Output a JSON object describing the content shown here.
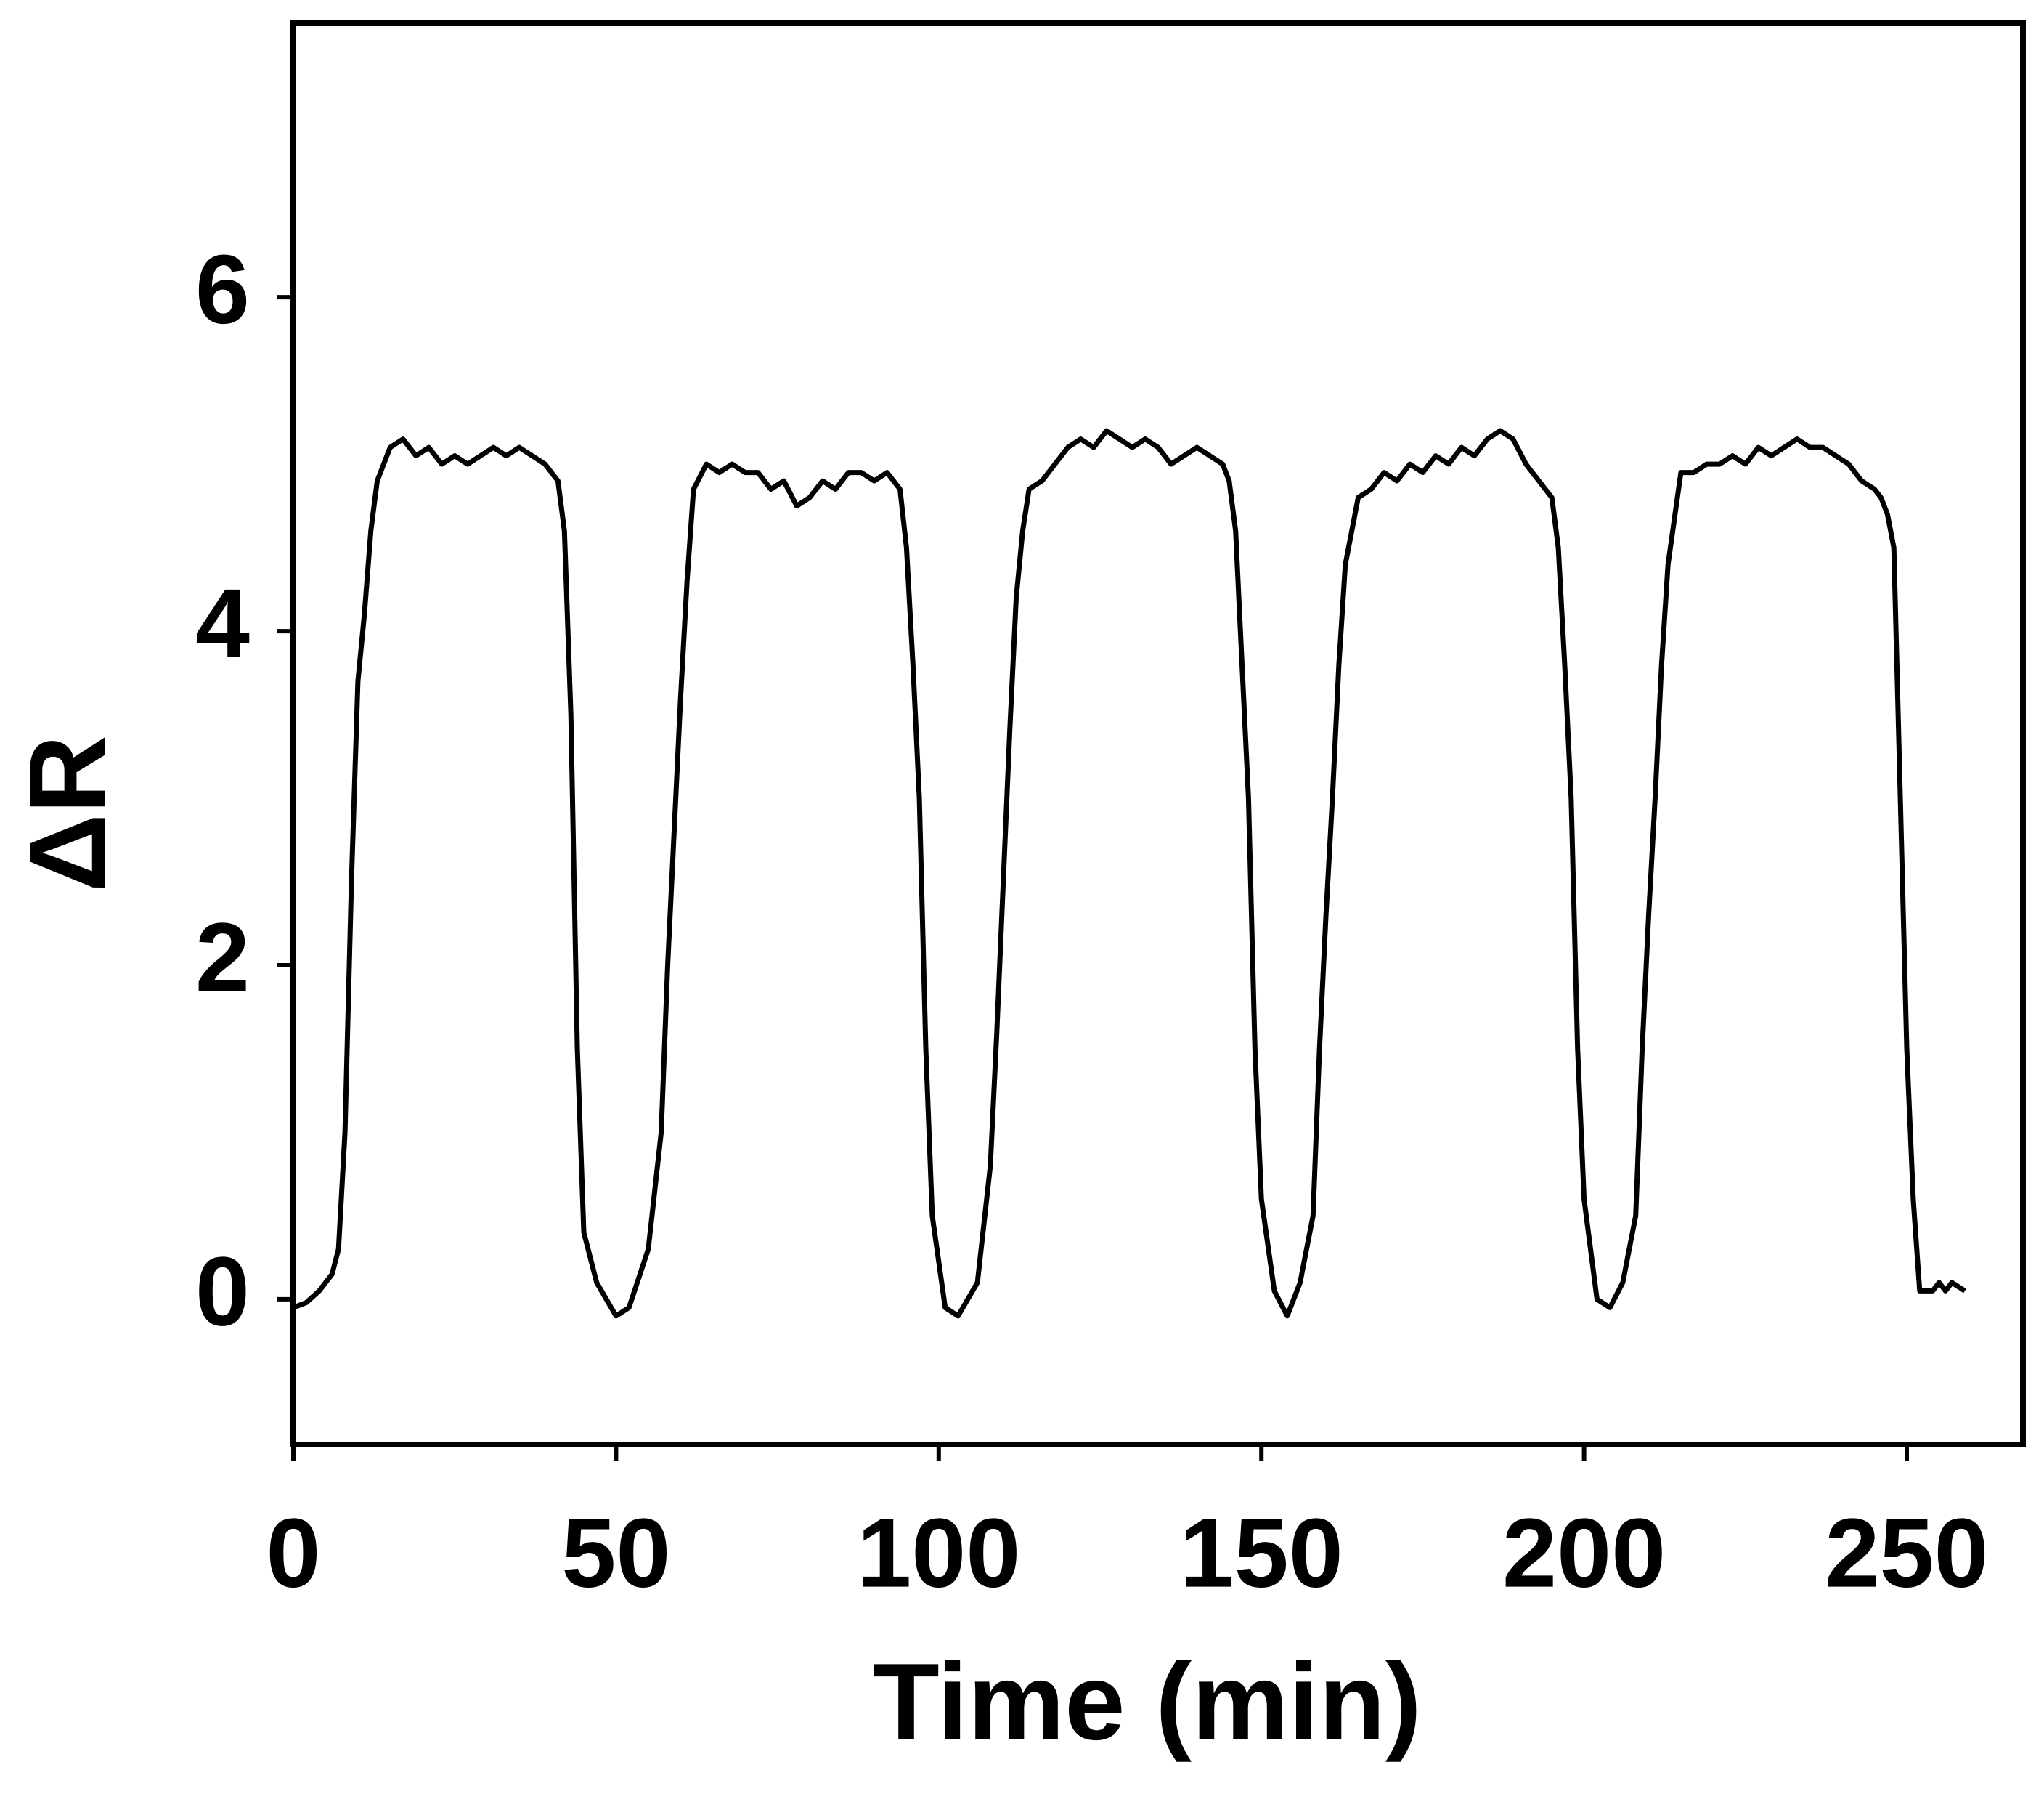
{
  "chart_data": {
    "type": "line",
    "xlabel": "Time (min)",
    "ylabel": "ΔR",
    "color": "#000000",
    "xlim": [
      0,
      268
    ],
    "ylim": [
      -0.87,
      7.64
    ],
    "xticks": [
      0,
      50,
      100,
      150,
      200,
      250
    ],
    "yticks": [
      0,
      2,
      4,
      6
    ],
    "x": [
      0,
      2,
      4,
      6,
      7,
      8,
      9,
      10,
      11,
      12,
      13,
      15,
      17,
      19,
      21,
      23,
      25,
      27,
      29,
      31,
      33,
      35,
      37,
      39,
      41,
      42,
      43,
      44,
      45,
      47,
      50,
      52,
      55,
      57,
      58,
      59,
      60,
      61,
      62,
      64,
      66,
      68,
      70,
      72,
      74,
      76,
      78,
      80,
      82,
      84,
      86,
      88,
      90,
      92,
      94,
      95,
      96,
      97,
      98,
      99,
      101,
      103,
      106,
      108,
      109,
      110,
      111,
      112,
      113,
      114,
      116,
      118,
      120,
      122,
      124,
      126,
      128,
      130,
      132,
      134,
      136,
      138,
      140,
      142,
      144,
      145,
      146,
      147,
      148,
      149,
      150,
      152,
      154,
      156,
      158,
      159,
      160,
      161,
      162,
      163,
      165,
      167,
      169,
      171,
      173,
      175,
      177,
      179,
      181,
      183,
      185,
      187,
      189,
      191,
      193,
      195,
      196,
      197,
      198,
      199,
      200,
      202,
      204,
      206,
      208,
      209,
      210,
      211,
      212,
      213,
      215,
      217,
      219,
      221,
      223,
      225,
      227,
      229,
      231,
      233,
      235,
      237,
      239,
      241,
      243,
      245,
      246,
      247,
      248,
      249,
      250,
      251,
      252,
      253,
      254,
      255,
      256,
      257,
      259
    ],
    "values": [
      -0.05,
      -0.02,
      0.05,
      0.15,
      0.3,
      1.0,
      2.5,
      3.7,
      4.1,
      4.6,
      4.9,
      5.1,
      5.15,
      5.05,
      5.1,
      5.0,
      5.05,
      5.0,
      5.05,
      5.1,
      5.05,
      5.1,
      5.05,
      5.0,
      4.9,
      4.6,
      3.5,
      1.5,
      0.4,
      0.1,
      -0.1,
      -0.05,
      0.3,
      1.0,
      2.0,
      2.8,
      3.6,
      4.3,
      4.85,
      5.0,
      4.95,
      5.0,
      4.95,
      4.95,
      4.85,
      4.9,
      4.75,
      4.8,
      4.9,
      4.85,
      4.95,
      4.95,
      4.9,
      4.95,
      4.85,
      4.5,
      3.8,
      3.0,
      1.5,
      0.5,
      -0.05,
      -0.1,
      0.1,
      0.8,
      1.6,
      2.5,
      3.4,
      4.2,
      4.6,
      4.85,
      4.9,
      5.0,
      5.1,
      5.15,
      5.1,
      5.2,
      5.15,
      5.1,
      5.15,
      5.1,
      5.0,
      5.05,
      5.1,
      5.05,
      5.0,
      4.9,
      4.6,
      3.8,
      3.0,
      1.5,
      0.6,
      0.05,
      -0.1,
      0.1,
      0.5,
      1.5,
      2.3,
      3.0,
      3.8,
      4.4,
      4.8,
      4.85,
      4.95,
      4.9,
      5.0,
      4.95,
      5.05,
      5.0,
      5.1,
      5.05,
      5.15,
      5.2,
      5.15,
      5.0,
      4.9,
      4.8,
      4.5,
      3.8,
      3.0,
      1.5,
      0.6,
      0.0,
      -0.05,
      0.1,
      0.5,
      1.5,
      2.3,
      3.0,
      3.8,
      4.4,
      4.95,
      4.95,
      5.0,
      5.0,
      5.05,
      5.0,
      5.1,
      5.05,
      5.1,
      5.15,
      5.1,
      5.1,
      5.05,
      5.0,
      4.9,
      4.85,
      4.8,
      4.7,
      4.5,
      3.0,
      1.5,
      0.6,
      0.05,
      0.05,
      0.05,
      0.1,
      0.05,
      0.1,
      0.05
    ]
  }
}
